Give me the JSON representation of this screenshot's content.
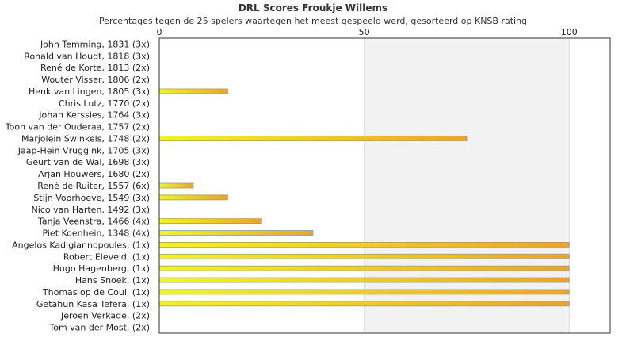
{
  "chart_data": {
    "type": "bar",
    "orientation": "horizontal",
    "title": "DRL Scores Froukje Willems",
    "subtitle": "Percentages tegen de 25 spelers waartegen het meest gespeeld werd, gesorteerd op KNSB rating",
    "xlabel": "",
    "ylabel": "",
    "xlim": [
      0,
      110
    ],
    "xticks": [
      0,
      50,
      100
    ],
    "grid": true,
    "legend": "none",
    "colors": {
      "bar_start": "#f5f516",
      "bar_end": "#f2a31e",
      "bar_stroke": "#7f9fbf",
      "band": "#f2f2f2"
    },
    "categories": [
      "John Temming, 1831 (3x)",
      "Ronald van Houdt, 1818 (3x)",
      "René de Korte, 1813 (2x)",
      "Wouter Visser, 1806 (2x)",
      "Henk van Lingen, 1805 (3x)",
      "Chris Lutz, 1770 (2x)",
      "Johan Kerssies, 1764 (3x)",
      "Toon van der Ouderaa, 1757 (2x)",
      "Marjolein Swinkels, 1748 (2x)",
      "Jaap-Hein Vruggink, 1705 (3x)",
      "Geurt van de Wal, 1698 (3x)",
      "Arjan Houwers, 1680 (2x)",
      "René de Ruiter, 1557 (6x)",
      "Stijn Voorhoeve, 1549 (3x)",
      "Nico van Harten, 1492 (3x)",
      "Tanja Veenstra, 1466 (4x)",
      "Piet Koenhein, 1348 (4x)",
      "Angelos Kadigiannopoules,  (1x)",
      "Robert Eleveld,  (1x)",
      "Hugo Hagenberg,  (1x)",
      "Hans Snoek,  (1x)",
      "Thomas op de Coul,  (1x)",
      "Getahun Kasa Tefera,  (1x)",
      "Jeroen Verkade,  (2x)",
      "Tom van der Most,  (2x)"
    ],
    "values": [
      0,
      0,
      0,
      0,
      16.7,
      0,
      0,
      0,
      75,
      0,
      0,
      0,
      8.3,
      16.7,
      0,
      25,
      37.5,
      100,
      100,
      100,
      100,
      100,
      100,
      0,
      0
    ]
  }
}
